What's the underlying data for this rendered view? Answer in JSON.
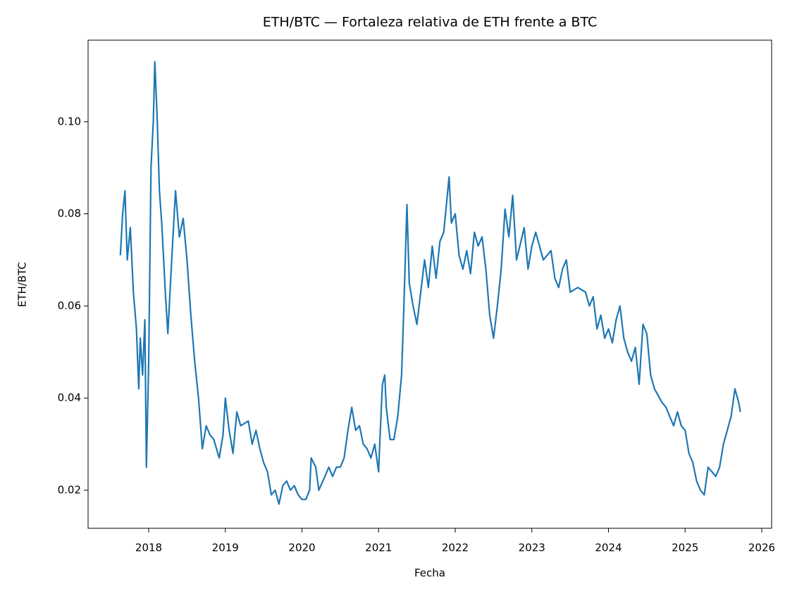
{
  "chart_data": {
    "type": "line",
    "title": "ETH/BTC — Fortaleza relativa de ETH frente a BTC",
    "x_label": "Fecha",
    "y_label": "ETH/BTC",
    "xlim": [
      2017.209,
      2026.129
    ],
    "xticks": [
      2018,
      2019,
      2020,
      2021,
      2022,
      2023,
      2024,
      2025,
      2026
    ],
    "ylim": [
      0.01174,
      0.1177
    ],
    "yticks": [
      0.02,
      0.04,
      0.06,
      0.08,
      {
        "value": 0.1,
        "label": "0.10"
      }
    ],
    "grid": false,
    "series": [
      {
        "color": "#1f77b4",
        "x": [
          2017.63,
          2017.66,
          2017.69,
          2017.72,
          2017.76,
          2017.8,
          2017.84,
          2017.87,
          2017.89,
          2017.92,
          2017.95,
          2017.97,
          2018.0,
          2018.03,
          2018.06,
          2018.08,
          2018.11,
          2018.14,
          2018.17,
          2018.22,
          2018.25,
          2018.3,
          2018.35,
          2018.4,
          2018.45,
          2018.5,
          2018.55,
          2018.6,
          2018.65,
          2018.7,
          2018.75,
          2018.8,
          2018.85,
          2018.92,
          2018.97,
          2019.0,
          2019.05,
          2019.1,
          2019.15,
          2019.2,
          2019.3,
          2019.35,
          2019.4,
          2019.45,
          2019.5,
          2019.55,
          2019.6,
          2019.65,
          2019.7,
          2019.75,
          2019.8,
          2019.85,
          2019.9,
          2019.95,
          2020.0,
          2020.05,
          2020.1,
          2020.12,
          2020.18,
          2020.22,
          2020.3,
          2020.35,
          2020.4,
          2020.45,
          2020.5,
          2020.55,
          2020.6,
          2020.65,
          2020.7,
          2020.75,
          2020.8,
          2020.85,
          2020.9,
          2020.95,
          2021.0,
          2021.02,
          2021.05,
          2021.08,
          2021.1,
          2021.15,
          2021.2,
          2021.25,
          2021.3,
          2021.33,
          2021.37,
          2021.4,
          2021.45,
          2021.5,
          2021.55,
          2021.6,
          2021.65,
          2021.7,
          2021.75,
          2021.8,
          2021.85,
          2021.92,
          2021.95,
          2022.0,
          2022.05,
          2022.1,
          2022.15,
          2022.2,
          2022.25,
          2022.3,
          2022.35,
          2022.4,
          2022.45,
          2022.5,
          2022.55,
          2022.6,
          2022.65,
          2022.7,
          2022.75,
          2022.8,
          2022.9,
          2022.95,
          2023.0,
          2023.05,
          2023.15,
          2023.25,
          2023.3,
          2023.35,
          2023.4,
          2023.45,
          2023.5,
          2023.6,
          2023.7,
          2023.75,
          2023.8,
          2023.85,
          2023.9,
          2023.95,
          2024.0,
          2024.05,
          2024.1,
          2024.15,
          2024.2,
          2024.25,
          2024.3,
          2024.35,
          2024.4,
          2024.45,
          2024.5,
          2024.55,
          2024.6,
          2024.7,
          2024.75,
          2024.85,
          2024.9,
          2024.95,
          2025.0,
          2025.05,
          2025.1,
          2025.15,
          2025.2,
          2025.25,
          2025.3,
          2025.35,
          2025.4,
          2025.45,
          2025.5,
          2025.55,
          2025.6,
          2025.65,
          2025.7,
          2025.72
        ],
        "values": [
          0.071,
          0.08,
          0.085,
          0.07,
          0.077,
          0.063,
          0.055,
          0.042,
          0.053,
          0.045,
          0.057,
          0.025,
          0.048,
          0.09,
          0.1,
          0.113,
          0.101,
          0.085,
          0.078,
          0.062,
          0.054,
          0.07,
          0.085,
          0.075,
          0.079,
          0.07,
          0.058,
          0.048,
          0.04,
          0.029,
          0.034,
          0.032,
          0.031,
          0.027,
          0.032,
          0.04,
          0.033,
          0.028,
          0.037,
          0.034,
          0.035,
          0.03,
          0.033,
          0.029,
          0.026,
          0.024,
          0.019,
          0.02,
          0.017,
          0.021,
          0.022,
          0.02,
          0.021,
          0.019,
          0.018,
          0.018,
          0.02,
          0.027,
          0.025,
          0.02,
          0.023,
          0.025,
          0.023,
          0.025,
          0.025,
          0.027,
          0.033,
          0.038,
          0.033,
          0.034,
          0.03,
          0.029,
          0.027,
          0.03,
          0.024,
          0.032,
          0.043,
          0.045,
          0.038,
          0.031,
          0.031,
          0.036,
          0.045,
          0.06,
          0.082,
          0.065,
          0.06,
          0.056,
          0.063,
          0.07,
          0.064,
          0.073,
          0.066,
          0.074,
          0.076,
          0.088,
          0.078,
          0.08,
          0.071,
          0.068,
          0.072,
          0.067,
          0.076,
          0.073,
          0.075,
          0.068,
          0.058,
          0.053,
          0.06,
          0.068,
          0.081,
          0.075,
          0.084,
          0.07,
          0.077,
          0.068,
          0.073,
          0.076,
          0.07,
          0.072,
          0.066,
          0.064,
          0.068,
          0.07,
          0.063,
          0.064,
          0.063,
          0.06,
          0.062,
          0.055,
          0.058,
          0.053,
          0.055,
          0.052,
          0.057,
          0.06,
          0.053,
          0.05,
          0.048,
          0.051,
          0.043,
          0.056,
          0.054,
          0.045,
          0.042,
          0.039,
          0.038,
          0.034,
          0.037,
          0.034,
          0.033,
          0.028,
          0.026,
          0.022,
          0.02,
          0.019,
          0.025,
          0.024,
          0.023,
          0.025,
          0.03,
          0.033,
          0.036,
          0.042,
          0.039,
          0.037
        ]
      }
    ]
  }
}
